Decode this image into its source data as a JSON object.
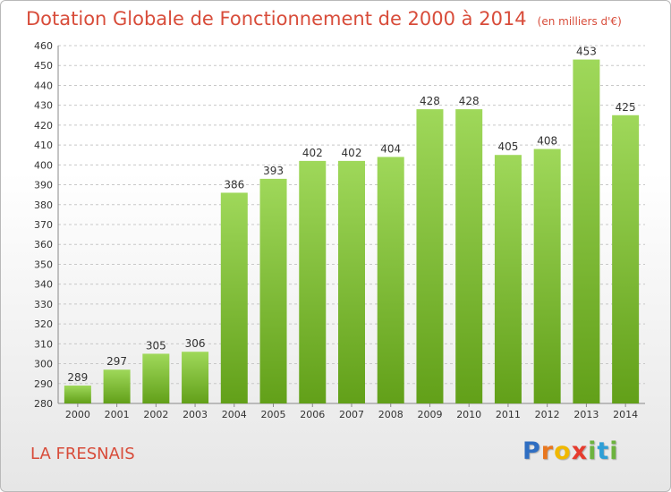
{
  "title": "Dotation Globale de Fonctionnement de 2000 à 2014",
  "subtitle": "(en milliers d'€)",
  "commune": "LA FRESNAIS",
  "logo": {
    "letters": [
      "P",
      "r",
      "o",
      "x",
      "i",
      "t",
      "i"
    ],
    "colors": [
      "#2f6ec2",
      "#e8771f",
      "#f0b800",
      "#e63b2e",
      "#6db33f",
      "#2f9fd6",
      "#6db33f"
    ]
  },
  "colors": {
    "bar_light": "#9fd85a",
    "bar_dark": "#62a019",
    "title": "#d84c3a"
  },
  "chart_data": {
    "type": "bar",
    "title": "Dotation Globale de Fonctionnement de 2000 à 2014",
    "subtitle": "(en milliers d'€)",
    "categories": [
      "2000",
      "2001",
      "2002",
      "2003",
      "2004",
      "2005",
      "2006",
      "2007",
      "2008",
      "2009",
      "2010",
      "2011",
      "2012",
      "2013",
      "2014"
    ],
    "values": [
      289,
      297,
      305,
      306,
      386,
      393,
      402,
      402,
      404,
      428,
      428,
      405,
      408,
      453,
      425
    ],
    "ylim": [
      280,
      460
    ],
    "yticks": [
      280,
      290,
      300,
      310,
      320,
      330,
      340,
      350,
      360,
      370,
      380,
      390,
      400,
      410,
      420,
      430,
      440,
      450,
      460
    ],
    "grid": true,
    "xlabel": "",
    "ylabel": ""
  }
}
